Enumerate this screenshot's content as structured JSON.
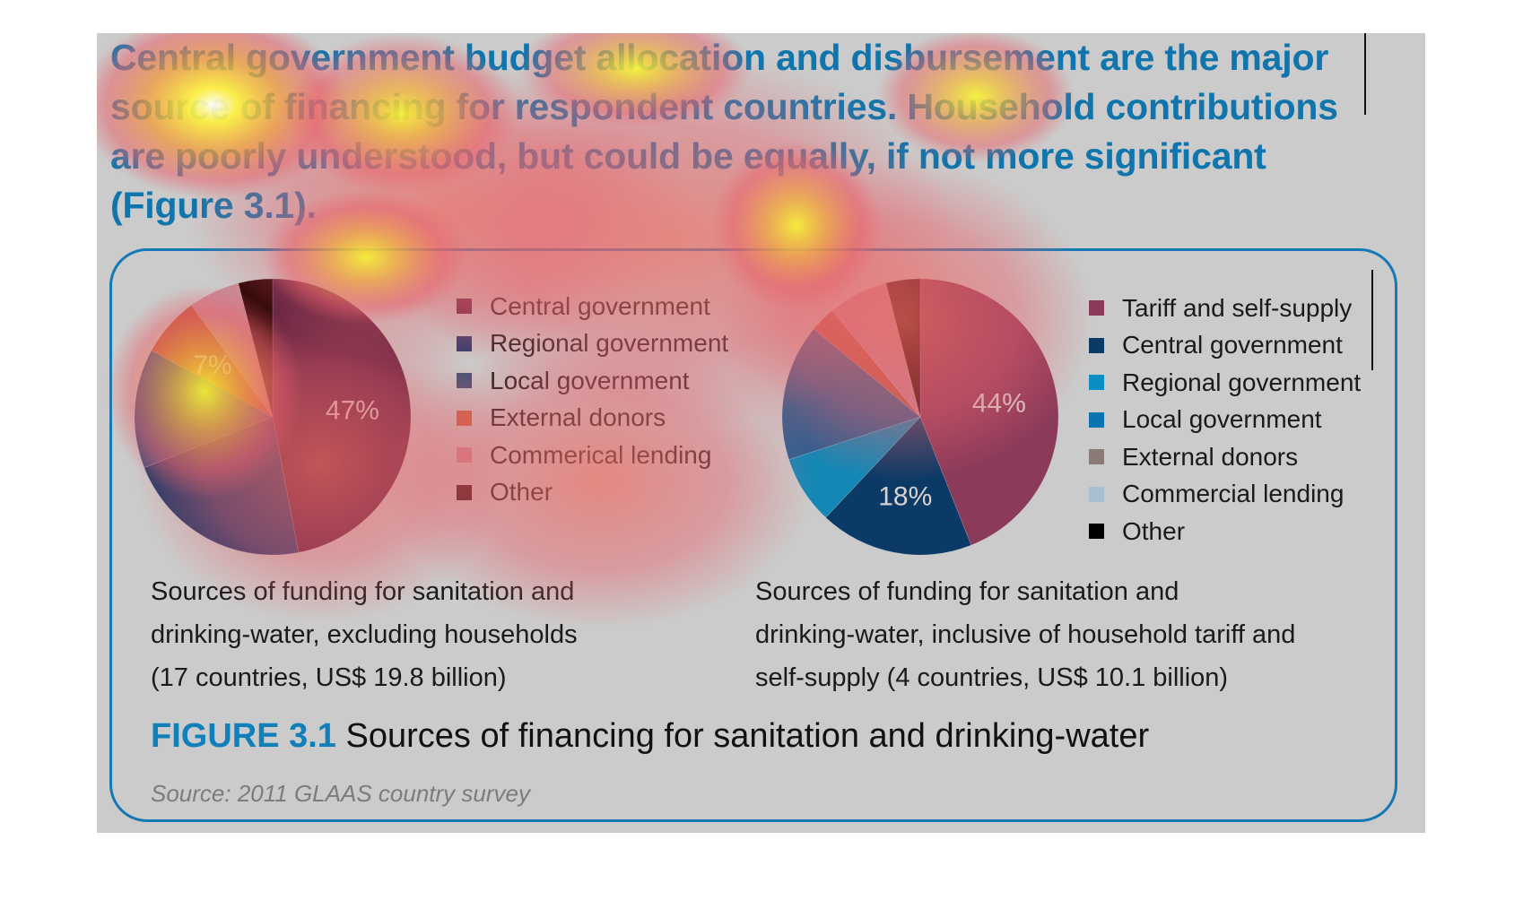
{
  "headline": "Central government budget allocation and disbursement are the major source of financing for respondent countries. Household contributions are poorly understood, but could be equally, if not more significant (Figure 3.1).",
  "figure": {
    "label": "FIGURE 3.1",
    "title": "Sources of financing for sanitation and drinking-water",
    "source": "Source: 2011 GLAAS country survey"
  },
  "chart_data": [
    {
      "type": "pie",
      "title": "Sources of funding for sanitation and drinking-water, excluding households (17 countries, US$ 19.8 billion)",
      "caption_lines": [
        "Sources of funding for sanitation and",
        "drinking-water, excluding households",
        "(17 countries, US$ 19.8 billion)"
      ],
      "legend_position": "right",
      "slices": [
        {
          "label": "Central government",
          "value": 47,
          "color": "#5b1f3f",
          "show_label": true
        },
        {
          "label": "Regional government",
          "value": 22,
          "color": "#213a6b",
          "show_label": false
        },
        {
          "label": "Local government",
          "value": 14,
          "color": "#3a507e",
          "show_label": false
        },
        {
          "label": "External donors",
          "value": 7,
          "color": "#c0553d",
          "show_label": true
        },
        {
          "label": "Commerical lending",
          "value": 6,
          "color": "#c98a97",
          "show_label": false
        },
        {
          "label": "Other",
          "value": 4,
          "color": "#2a0303",
          "show_label": false
        }
      ]
    },
    {
      "type": "pie",
      "title": "Sources of funding for sanitation and drinking-water, inclusive of household tariff and self-supply (4 countries, US$ 10.1 billion)",
      "caption_lines": [
        "Sources of funding for sanitation and",
        "drinking-water, inclusive of household tariff and",
        "self-supply (4 countries, US$ 10.1 billion)"
      ],
      "legend_position": "right",
      "slices": [
        {
          "label": "Tariff and self-supply",
          "value": 44,
          "color": "#8b3a5a",
          "show_label": true
        },
        {
          "label": "Central government",
          "value": 18,
          "color": "#0b3a66",
          "show_label": true
        },
        {
          "label": "Regional government",
          "value": 8,
          "color": "#1487b5",
          "show_label": false
        },
        {
          "label": "Local government",
          "value": 16,
          "color": "#2d5e8f",
          "show_label": false
        },
        {
          "label": "External donors",
          "value": 3,
          "color": "#b85845",
          "show_label": false
        },
        {
          "label": "Commercial lending",
          "value": 7,
          "color": "#c4879a",
          "show_label": false
        },
        {
          "label": "Other",
          "value": 4,
          "color": "#2b0000",
          "show_label": false
        }
      ]
    }
  ],
  "legend_swatch_colors": {
    "left": [
      "#5b1f3f",
      "#2c3a6e",
      "#3f5078",
      "#c8603e",
      "#c98a94",
      "#1e0303"
    ],
    "right": [
      "#8b3a5a",
      "#0b3a66",
      "#0a8fc4",
      "#0a74b0",
      "#8a7a76",
      "#a9bfcf",
      "#000000"
    ]
  },
  "colors": {
    "accent": "#1180ba",
    "panel_bg": "#cbcbcb",
    "border": "#1479b3"
  }
}
